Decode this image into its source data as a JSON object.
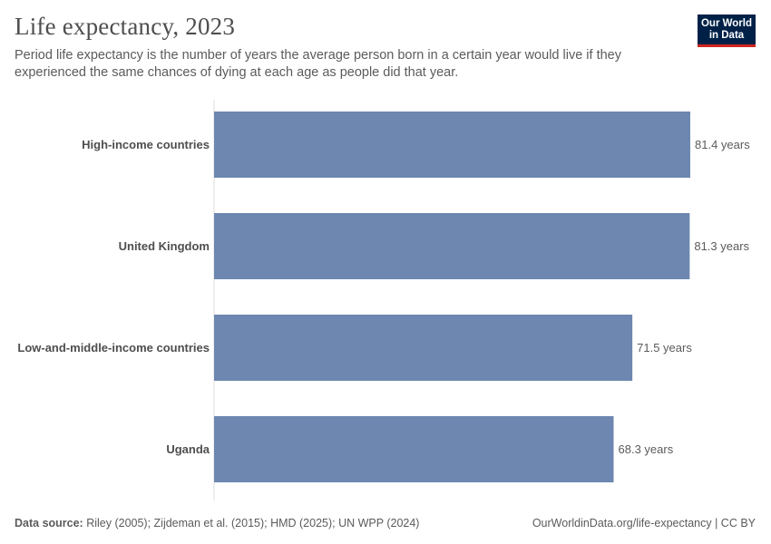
{
  "header": {
    "title": "Life expectancy, 2023",
    "subtitle": "Period life expectancy is the number of years the average person born in a certain year would live if they experienced the same chances of dying at each age as people did that year."
  },
  "logo": {
    "line1": "Our World",
    "line2": "in Data"
  },
  "chart_data": {
    "type": "bar",
    "orientation": "horizontal",
    "title": "Life expectancy, 2023",
    "categories": [
      "High-income countries",
      "United Kingdom",
      "Low-and-middle-income countries",
      "Uganda"
    ],
    "values": [
      81.4,
      81.3,
      71.5,
      68.3
    ],
    "value_labels": [
      "81.4 years",
      "81.3 years",
      "71.5 years",
      "68.3 years"
    ],
    "unit": "years",
    "xlim": [
      0,
      81.4
    ],
    "bar_color": "#6d87b0"
  },
  "footer": {
    "source_label": "Data source:",
    "source_text": " Riley (2005); Zijdeman et al. (2015); HMD (2025); UN WPP (2024)",
    "credit": "OurWorldinData.org/life-expectancy | CC BY"
  }
}
